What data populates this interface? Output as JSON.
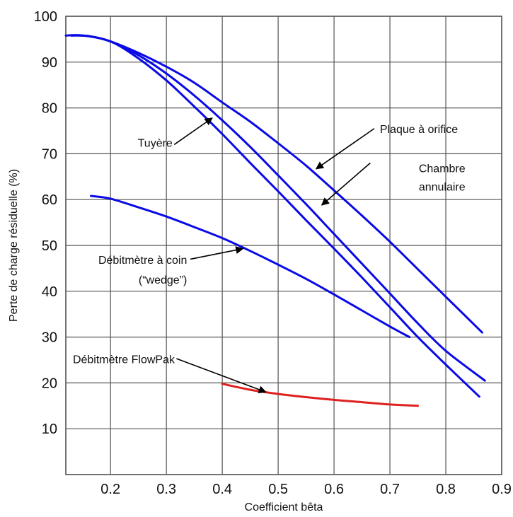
{
  "chart_data": {
    "type": "line",
    "title": "",
    "xlabel": "Coefficient bêta",
    "ylabel": "Perte de charge résiduelle (%)",
    "xlim": [
      0.12,
      0.9
    ],
    "ylim": [
      0,
      100
    ],
    "grid": true,
    "x_ticks": [
      {
        "value": 0.2,
        "label": "0.2"
      },
      {
        "value": 0.3,
        "label": "0.3"
      },
      {
        "value": 0.4,
        "label": "0.4"
      },
      {
        "value": 0.5,
        "label": "0.5"
      },
      {
        "value": 0.6,
        "label": "0.6"
      },
      {
        "value": 0.7,
        "label": "0.7"
      },
      {
        "value": 0.8,
        "label": "0.8"
      },
      {
        "value": 0.9,
        "label": "0.9"
      }
    ],
    "y_ticks": [
      {
        "value": 10,
        "label": "10"
      },
      {
        "value": 20,
        "label": "20"
      },
      {
        "value": 30,
        "label": "30"
      },
      {
        "value": 40,
        "label": "40"
      },
      {
        "value": 50,
        "label": "50"
      },
      {
        "value": 60,
        "label": "60"
      },
      {
        "value": 70,
        "label": "70"
      },
      {
        "value": 80,
        "label": "80"
      },
      {
        "value": 90,
        "label": "90"
      },
      {
        "value": 100,
        "label": "100"
      }
    ],
    "series": [
      {
        "key": "plaque",
        "color": "#0a0ae6",
        "x": [
          0.13,
          0.16,
          0.2,
          0.25,
          0.3,
          0.35,
          0.4,
          0.45,
          0.5,
          0.55,
          0.6,
          0.65,
          0.7,
          0.75,
          0.8,
          0.865
        ],
        "y": [
          95.8,
          95.7,
          94.5,
          92.0,
          89.0,
          85.5,
          81.2,
          77.0,
          72.3,
          67.4,
          62.0,
          56.5,
          50.8,
          44.8,
          38.8,
          31.0
        ]
      },
      {
        "key": "chambre",
        "color": "#0a0ae6",
        "x": [
          0.13,
          0.16,
          0.2,
          0.25,
          0.3,
          0.35,
          0.4,
          0.45,
          0.5,
          0.55,
          0.6,
          0.65,
          0.7,
          0.75,
          0.8,
          0.87
        ],
        "y": [
          95.8,
          95.7,
          94.5,
          91.5,
          87.5,
          82.7,
          77.3,
          71.5,
          65.3,
          59.0,
          52.5,
          46.0,
          39.5,
          33.0,
          27.0,
          20.5
        ]
      },
      {
        "key": "tuyere",
        "color": "#0a0ae6",
        "x": [
          0.12,
          0.15,
          0.2,
          0.25,
          0.3,
          0.35,
          0.4,
          0.45,
          0.5,
          0.55,
          0.6,
          0.65,
          0.7,
          0.75,
          0.8,
          0.86
        ],
        "y": [
          95.8,
          95.8,
          94.5,
          90.8,
          86.0,
          80.3,
          74.3,
          68.0,
          61.8,
          55.5,
          49.3,
          43.0,
          36.5,
          30.0,
          24.0,
          17.0
        ]
      },
      {
        "key": "wedge",
        "color": "#0a0ae6",
        "x": [
          0.165,
          0.2,
          0.25,
          0.3,
          0.35,
          0.4,
          0.45,
          0.5,
          0.55,
          0.6,
          0.65,
          0.7,
          0.735
        ],
        "y": [
          60.8,
          60.2,
          58.3,
          56.3,
          54.0,
          51.6,
          48.8,
          45.8,
          42.7,
          39.3,
          35.8,
          32.3,
          30.0
        ]
      },
      {
        "key": "flowpak",
        "color": "#e02020",
        "x": [
          0.4,
          0.45,
          0.5,
          0.55,
          0.6,
          0.65,
          0.7,
          0.75
        ],
        "y": [
          19.8,
          18.5,
          17.6,
          16.9,
          16.3,
          15.8,
          15.3,
          15.0
        ]
      }
    ],
    "annotations": [
      {
        "key": "plaque",
        "lines": [
          "Plaque à orifice"
        ],
        "anchor": "start",
        "x": 0.682,
        "y": 74.5,
        "arrow_from": [
          0.672,
          75.5
        ],
        "arrow_to": [
          0.568,
          66.7
        ]
      },
      {
        "key": "chambre",
        "lines": [
          "Chambre",
          "annulaire"
        ],
        "anchor": "end",
        "x": 0.835,
        "y": 66.0,
        "line_gap": 26,
        "arrow_from": [
          0.665,
          68.0
        ],
        "arrow_to": [
          0.578,
          58.8
        ]
      },
      {
        "key": "tuyere",
        "lines": [
          "Tuyère"
        ],
        "anchor": "end",
        "x": 0.311,
        "y": 71.5,
        "arrow_from": [
          0.314,
          72.0
        ],
        "arrow_to": [
          0.382,
          77.8
        ]
      },
      {
        "key": "wedge",
        "lines": [
          "Débitmètre à coin",
          "(“wedge”)"
        ],
        "anchor": "end",
        "x": 0.337,
        "y": 46.0,
        "line_gap": 28,
        "arrow_from": [
          0.343,
          47.0
        ],
        "arrow_to": [
          0.437,
          49.3
        ]
      },
      {
        "key": "flowpak",
        "lines": [
          "Débitmètre FlowPak"
        ],
        "anchor": "end",
        "x": 0.315,
        "y": 24.3,
        "arrow_from": [
          0.318,
          25.3
        ],
        "arrow_to": [
          0.478,
          18.0
        ]
      }
    ]
  }
}
